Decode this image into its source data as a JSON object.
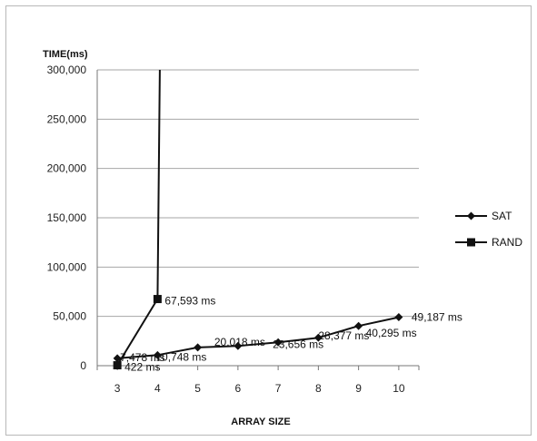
{
  "chart_data": {
    "type": "line",
    "title": "",
    "ylabel": "TIME(ms)",
    "xlabel": "ARRAY SIZE",
    "x": [
      3,
      4,
      5,
      6,
      7,
      8,
      9,
      10
    ],
    "x_tick_labels": [
      "3",
      "4",
      "5",
      "6",
      "7",
      "8",
      "9",
      "10"
    ],
    "ylim": [
      0,
      300000
    ],
    "y_ticks": [
      0,
      50000,
      100000,
      150000,
      200000,
      250000,
      300000
    ],
    "y_tick_labels": [
      "0",
      "50,000",
      "100,000",
      "150,000",
      "200,000",
      "250,000",
      "300,000"
    ],
    "grid": "horizontal",
    "legend_position": "right",
    "series": [
      {
        "name": "SAT",
        "marker": "diamond",
        "color": "#111111",
        "x": [
          3,
          4,
          5,
          6,
          7,
          8,
          9,
          10
        ],
        "values": [
          7478,
          10748,
          18500,
          20018,
          23656,
          28377,
          40295,
          49187
        ],
        "data_labels": [
          "7,478 ms",
          "10,748 ms",
          "",
          "20,018 ms",
          "23,656 ms",
          "28,377 ms",
          "40,295 ms",
          "49,187 ms"
        ]
      },
      {
        "name": "RAND",
        "marker": "square",
        "color": "#111111",
        "x": [
          3,
          4
        ],
        "values": [
          422,
          67593
        ],
        "data_labels": [
          "422 ms",
          "67,593 ms"
        ],
        "continues_above": true
      }
    ]
  }
}
